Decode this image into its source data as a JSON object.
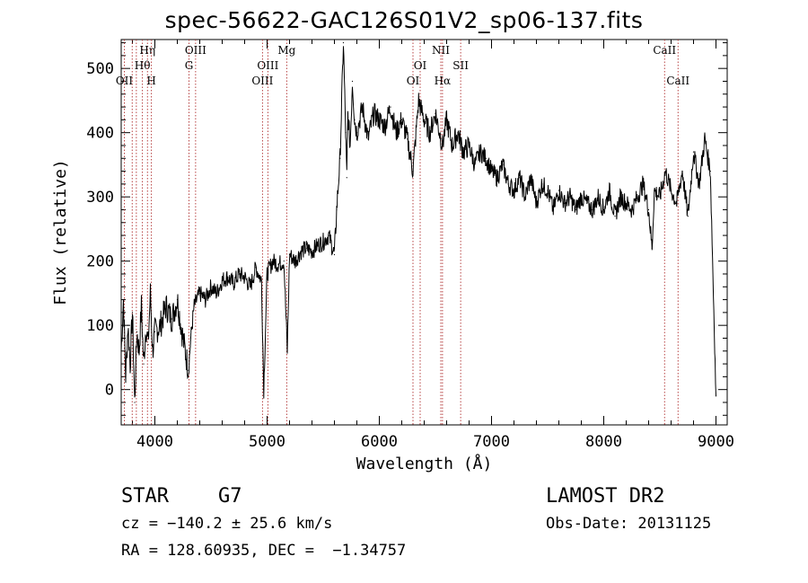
{
  "chart_data": {
    "type": "line",
    "title": "spec-56622-GAC126S01V2_sp06-137.fits",
    "xlabel": "Wavelength (Å)",
    "ylabel": "Flux (relative)",
    "xlim": [
      3700,
      9100
    ],
    "ylim": [
      -55,
      545
    ],
    "xticks": [
      4000,
      5000,
      6000,
      7000,
      8000,
      9000
    ],
    "yticks": [
      0,
      100,
      200,
      300,
      400,
      500
    ],
    "grid": false,
    "series": [
      {
        "x": [
          3700,
          3720,
          3740,
          3760,
          3780,
          3800,
          3820,
          3840,
          3860,
          3880,
          3900,
          3920,
          3940,
          3960,
          3980,
          4000,
          4050,
          4100,
          4150,
          4200,
          4250,
          4300,
          4320,
          4350,
          4400,
          4450,
          4500,
          4550,
          4600,
          4650,
          4700,
          4750,
          4800,
          4850,
          4900,
          4950,
          4970,
          5000,
          5050,
          5100,
          5150,
          5180,
          5200,
          5250,
          5300,
          5350,
          5400,
          5450,
          5500,
          5550,
          5600,
          5620,
          5650,
          5680,
          5700,
          5710,
          5720,
          5740,
          5760,
          5780,
          5800,
          5850,
          5900,
          5950,
          6000,
          6050,
          6100,
          6150,
          6200,
          6250,
          6300,
          6350,
          6400,
          6450,
          6500,
          6550,
          6563,
          6600,
          6650,
          6700,
          6750,
          6800,
          6850,
          6900,
          6950,
          7000,
          7050,
          7100,
          7150,
          7200,
          7250,
          7300,
          7350,
          7400,
          7450,
          7500,
          7550,
          7600,
          7650,
          7700,
          7750,
          7800,
          7850,
          7900,
          7950,
          8000,
          8050,
          8100,
          8150,
          8200,
          8250,
          8300,
          8350,
          8400,
          8430,
          8450,
          8500,
          8550,
          8600,
          8650,
          8700,
          8750,
          8800,
          8850,
          8900,
          8950,
          9000
        ],
        "values": [
          60,
          140,
          20,
          100,
          40,
          120,
          -20,
          90,
          60,
          130,
          40,
          100,
          70,
          150,
          60,
          90,
          100,
          130,
          110,
          140,
          80,
          30,
          80,
          130,
          150,
          140,
          160,
          150,
          170,
          175,
          165,
          180,
          175,
          160,
          190,
          170,
          0,
          180,
          200,
          195,
          200,
          60,
          210,
          200,
          215,
          220,
          215,
          225,
          230,
          240,
          210,
          280,
          360,
          540,
          400,
          330,
          430,
          380,
          480,
          420,
          400,
          440,
          390,
          430,
          420,
          410,
          440,
          400,
          420,
          390,
          340,
          450,
          420,
          400,
          430,
          390,
          380,
          420,
          380,
          400,
          370,
          380,
          350,
          370,
          360,
          340,
          330,
          350,
          320,
          310,
          330,
          300,
          330,
          290,
          320,
          310,
          280,
          310,
          290,
          300,
          280,
          300,
          290,
          280,
          300,
          280,
          310,
          270,
          300,
          290,
          280,
          300,
          320,
          280,
          220,
          310,
          300,
          340,
          310,
          290,
          340,
          270,
          370,
          320,
          390,
          340,
          -10
        ]
      }
    ],
    "lines": [
      {
        "w": 3728,
        "label": "OII",
        "row": 3
      },
      {
        "w": 3798,
        "label": "",
        "row": 0
      },
      {
        "w": 3835,
        "label": "",
        "row": 0
      },
      {
        "w": 3889,
        "label": "Hθ",
        "row": 2
      },
      {
        "w": 3934,
        "label": "Hη",
        "row": 1
      },
      {
        "w": 3969,
        "label": "H",
        "row": 3
      },
      {
        "w": 4304,
        "label": "G",
        "row": 2
      },
      {
        "w": 4363,
        "label": "OIII",
        "row": 1
      },
      {
        "w": 4959,
        "label": "OIII",
        "row": 3
      },
      {
        "w": 5007,
        "label": "OIII",
        "row": 2
      },
      {
        "w": 5175,
        "label": "Mg",
        "row": 1
      },
      {
        "w": 6300,
        "label": "OI",
        "row": 3
      },
      {
        "w": 6364,
        "label": "OI",
        "row": 2
      },
      {
        "w": 6548,
        "label": "NII",
        "row": 1
      },
      {
        "w": 6563,
        "label": "Hα",
        "row": 3
      },
      {
        "w": 6725,
        "label": "SII",
        "row": 2
      },
      {
        "w": 8542,
        "label": "CaII",
        "row": 1
      },
      {
        "w": 8662,
        "label": "CaII",
        "row": 3
      }
    ]
  },
  "info": {
    "class": "STAR",
    "subclass": "G7",
    "cz": "cz = −140.2 ± 25.6 km/s",
    "coords": "RA = 128.60935, DEC =  −1.34757",
    "survey": "LAMOST DR2",
    "obs_date": "Obs-Date: 20131125"
  }
}
